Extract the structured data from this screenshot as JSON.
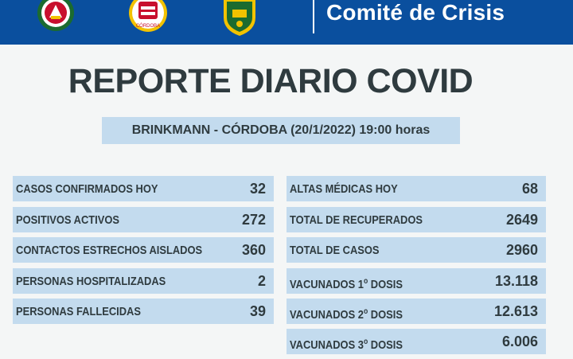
{
  "header": {
    "title": "Comité de Crisis",
    "colors": {
      "bar": "#0a4f9e",
      "panel": "#c3dbee",
      "text": "#2f3b3f"
    },
    "logos": [
      "fire-department-emblem",
      "cordoba-province-seal",
      "municipal-shield"
    ]
  },
  "report": {
    "title": "REPORTE DIARIO COVID",
    "subtitle": "BRINKMANN - CÓRDOBA (20/1/2022) 19:00 horas"
  },
  "left_stats": [
    {
      "label": "CASOS CONFIRMADOS HOY",
      "value": "32"
    },
    {
      "label": "POSITIVOS ACTIVOS",
      "value": "272"
    },
    {
      "label": "CONTACTOS ESTRECHOS AISLADOS",
      "value": "360"
    },
    {
      "label": "PERSONAS HOSPITALIZADAS",
      "value": "2"
    },
    {
      "label": "PERSONAS FALLECIDAS",
      "value": "39"
    }
  ],
  "right_stats": [
    {
      "label": "ALTAS MÉDICAS HOY",
      "value": "68"
    },
    {
      "label": "TOTAL DE RECUPERADOS",
      "value": "2649"
    },
    {
      "label": "TOTAL DE CASOS",
      "value": "2960"
    },
    {
      "prefix": "VACUNADOS 1",
      "sup": "o",
      "suffix": " DOSIS",
      "value": "13.118"
    },
    {
      "prefix": "VACUNADOS 2",
      "sup": "o",
      "suffix": " DOSIS",
      "value": "12.613"
    },
    {
      "prefix": "VACUNADOS 3",
      "sup": "o",
      "suffix": " DOSIS",
      "value": "6.006"
    }
  ]
}
